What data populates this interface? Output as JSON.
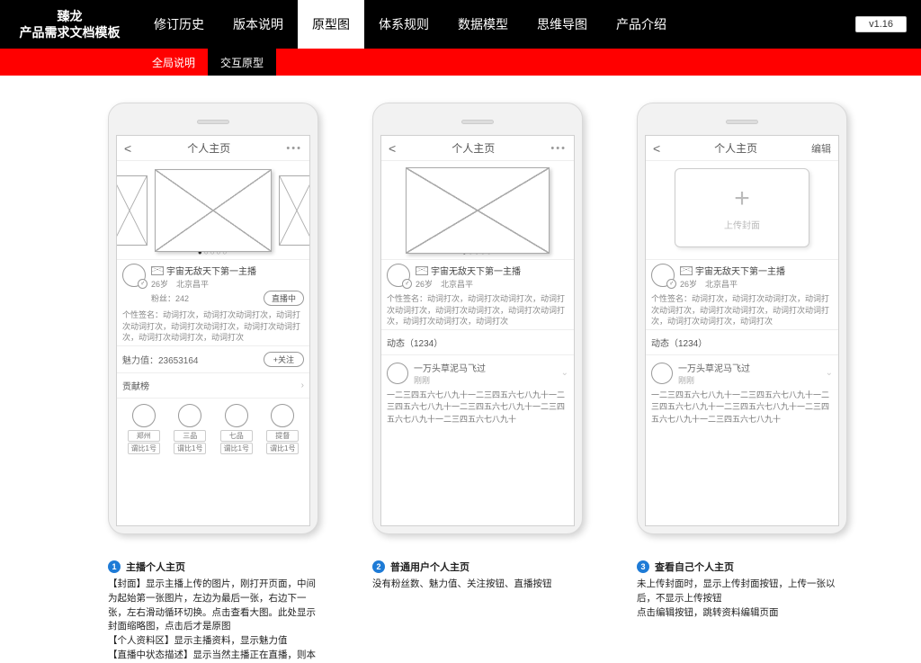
{
  "brand": {
    "line1": "臻龙",
    "line2": "产品需求文档模板"
  },
  "version": "v1.16",
  "topTabs": [
    "修订历史",
    "版本说明",
    "原型图",
    "体系规则",
    "数据模型",
    "思维导图",
    "产品介绍"
  ],
  "topActive": 2,
  "subTabs": [
    "全局说明",
    "交互原型"
  ],
  "subActive": 1,
  "pageTitle": "个人主页",
  "editLabel": "编辑",
  "uploadLabel": "上传封面",
  "profile": {
    "name": "宇宙无敌天下第一主播",
    "meta": "26岁　北京昌平",
    "fans": "粉丝：242",
    "sig": "个性签名：动词打次，动词打次动词打次，动词打次动词打次，动词打次动词打次，动词打次动词打次，动词打次动词打次，动词打次"
  },
  "liveBadge": "直播中",
  "charmLabel": "魅力值：",
  "charmValue": "23653164",
  "followBtn": "+关注",
  "rankTitle": "贡献榜",
  "ranks": [
    "郑州",
    "三品",
    "七品",
    "提督"
  ],
  "rankSub": "谓比1号",
  "dynTitle": "动态（1234）",
  "feed": {
    "user": "一万头草泥马飞过",
    "time": "刚刚",
    "text": "一二三四五六七八九十一二三四五六七八九十一二三四五六七八九十一二三四五六七八九十一二三四五六七八九十一二三四五六七八九十"
  },
  "notes": [
    {
      "n": "1",
      "t": "主播个人主页",
      "b": "【封面】显示主播上传的图片，刚打开页面，中间为起始第一张图片，左边为最后一张，右边下一张，左右滑动循环切换。点击查看大图。此处显示封面缩略图，点击后才是原图\n【个人资料区】显示主播资料，显示魅力值\n【直播中状态描述】显示当然主播正在直播，则本"
    },
    {
      "n": "2",
      "t": "普通用户个人主页",
      "b": "没有粉丝数、魅力值、关注按钮、直播按钮"
    },
    {
      "n": "3",
      "t": "查看自己个人主页",
      "b": "未上传封面时，显示上传封面按钮，上传一张以后，不显示上传按钮\n点击编辑按钮，跳转资料编辑页面"
    }
  ]
}
